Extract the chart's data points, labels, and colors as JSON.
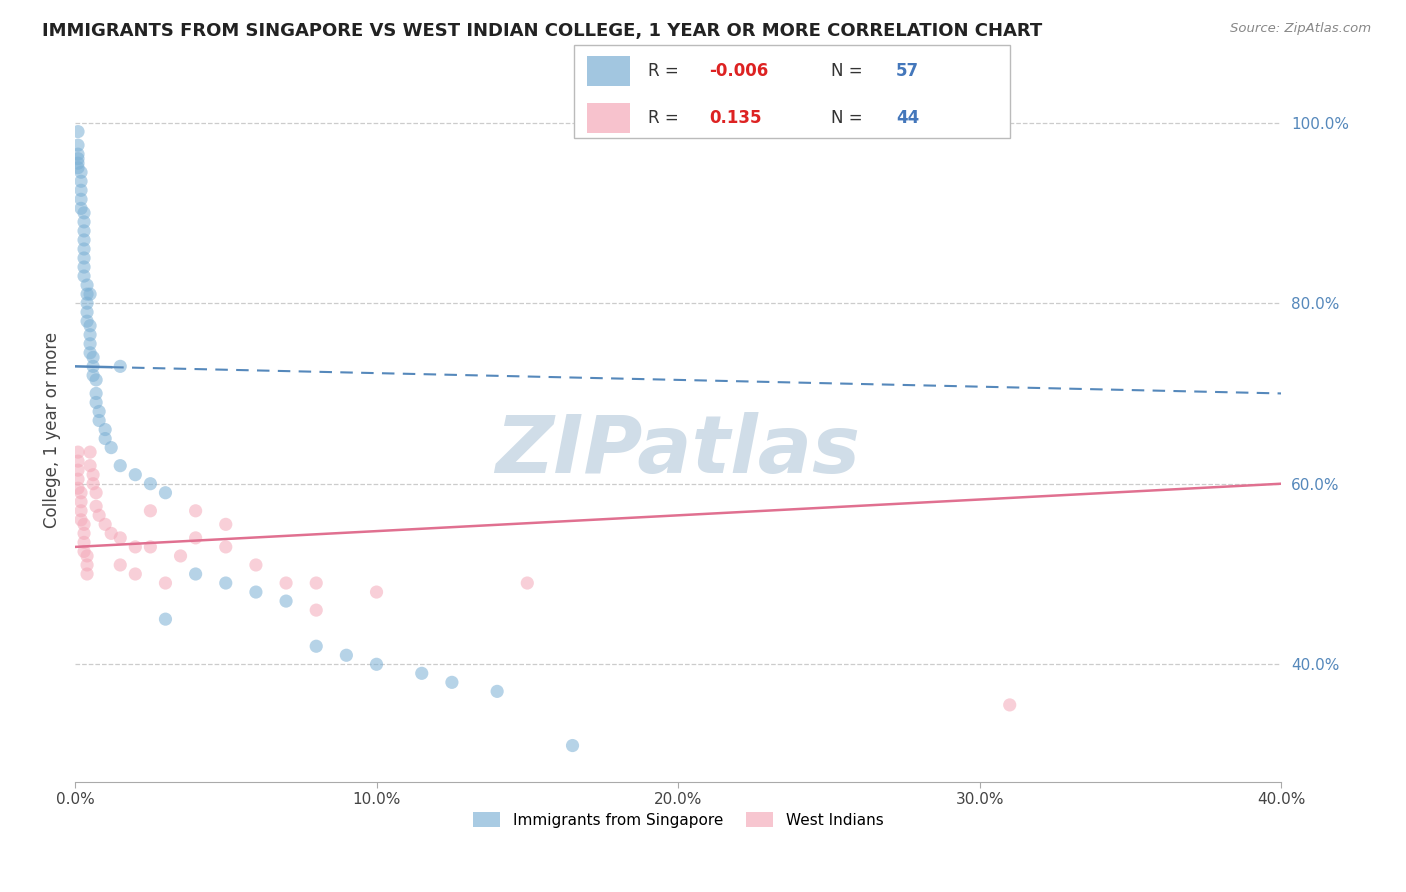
{
  "title": "IMMIGRANTS FROM SINGAPORE VS WEST INDIAN COLLEGE, 1 YEAR OR MORE CORRELATION CHART",
  "source_text": "Source: ZipAtlas.com",
  "ylabel": "College, 1 year or more",
  "xlim": [
    0.0,
    0.4
  ],
  "ylim": [
    0.27,
    1.05
  ],
  "xtick_labels": [
    "0.0%",
    "10.0%",
    "20.0%",
    "30.0%",
    "40.0%"
  ],
  "xtick_vals": [
    0.0,
    0.1,
    0.2,
    0.3,
    0.4
  ],
  "ytick_labels_right": [
    "40.0%",
    "60.0%",
    "80.0%",
    "100.0%"
  ],
  "ytick_vals_right": [
    0.4,
    0.6,
    0.8,
    1.0
  ],
  "blue_R": "-0.006",
  "blue_N": "57",
  "pink_R": "0.135",
  "pink_N": "44",
  "blue_color": "#7bafd4",
  "pink_color": "#f4a8b8",
  "blue_line_color": "#5588bb",
  "pink_line_color": "#e07090",
  "right_tick_color": "#5588bb",
  "background_color": "#ffffff",
  "grid_color": "#cccccc",
  "watermark_color": "#d0dde8",
  "legend_label_blue": "Immigrants from Singapore",
  "legend_label_pink": "West Indians",
  "blue_scatter_x": [
    0.001,
    0.001,
    0.001,
    0.001,
    0.001,
    0.001,
    0.002,
    0.002,
    0.002,
    0.002,
    0.002,
    0.003,
    0.003,
    0.003,
    0.003,
    0.003,
    0.003,
    0.003,
    0.003,
    0.004,
    0.004,
    0.004,
    0.004,
    0.004,
    0.005,
    0.005,
    0.005,
    0.005,
    0.005,
    0.006,
    0.006,
    0.006,
    0.007,
    0.007,
    0.007,
    0.008,
    0.008,
    0.01,
    0.01,
    0.012,
    0.015,
    0.015,
    0.02,
    0.025,
    0.03,
    0.03,
    0.04,
    0.05,
    0.06,
    0.07,
    0.08,
    0.09,
    0.1,
    0.115,
    0.125,
    0.14,
    0.165
  ],
  "blue_scatter_y": [
    0.99,
    0.975,
    0.965,
    0.96,
    0.955,
    0.95,
    0.945,
    0.935,
    0.925,
    0.915,
    0.905,
    0.9,
    0.89,
    0.88,
    0.87,
    0.86,
    0.85,
    0.84,
    0.83,
    0.82,
    0.81,
    0.8,
    0.79,
    0.78,
    0.775,
    0.765,
    0.755,
    0.745,
    0.81,
    0.74,
    0.73,
    0.72,
    0.715,
    0.7,
    0.69,
    0.68,
    0.67,
    0.66,
    0.65,
    0.64,
    0.73,
    0.62,
    0.61,
    0.6,
    0.59,
    0.45,
    0.5,
    0.49,
    0.48,
    0.47,
    0.42,
    0.41,
    0.4,
    0.39,
    0.38,
    0.37,
    0.31
  ],
  "pink_scatter_x": [
    0.001,
    0.001,
    0.001,
    0.001,
    0.001,
    0.002,
    0.002,
    0.002,
    0.002,
    0.003,
    0.003,
    0.003,
    0.003,
    0.004,
    0.004,
    0.004,
    0.005,
    0.005,
    0.006,
    0.006,
    0.007,
    0.007,
    0.008,
    0.01,
    0.012,
    0.015,
    0.015,
    0.02,
    0.02,
    0.025,
    0.025,
    0.03,
    0.035,
    0.04,
    0.04,
    0.05,
    0.05,
    0.06,
    0.07,
    0.08,
    0.08,
    0.1,
    0.15,
    0.31
  ],
  "pink_scatter_y": [
    0.635,
    0.625,
    0.615,
    0.605,
    0.595,
    0.59,
    0.58,
    0.57,
    0.56,
    0.555,
    0.545,
    0.535,
    0.525,
    0.52,
    0.51,
    0.5,
    0.635,
    0.62,
    0.61,
    0.6,
    0.59,
    0.575,
    0.565,
    0.555,
    0.545,
    0.54,
    0.51,
    0.53,
    0.5,
    0.57,
    0.53,
    0.49,
    0.52,
    0.57,
    0.54,
    0.555,
    0.53,
    0.51,
    0.49,
    0.49,
    0.46,
    0.48,
    0.49,
    0.355
  ],
  "blue_trend_x0": 0.0,
  "blue_trend_y0": 0.73,
  "blue_trend_x1": 0.4,
  "blue_trend_y1": 0.7,
  "pink_trend_x0": 0.0,
  "pink_trend_y0": 0.53,
  "pink_trend_x1": 0.4,
  "pink_trend_y1": 0.6
}
